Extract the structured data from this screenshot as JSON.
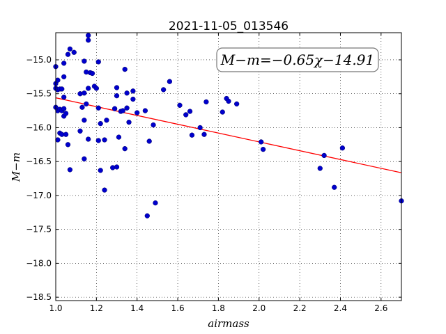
{
  "chart_data": {
    "type": "scatter",
    "title": "2021-11-05_013546",
    "xlabel": "airmass",
    "ylabel": "M−m",
    "xlim": [
      1.0,
      2.7
    ],
    "ylim": [
      -18.55,
      -14.6
    ],
    "y_inverted": true,
    "grid": true,
    "x_ticks": [
      1.0,
      1.2,
      1.4,
      1.6,
      1.8,
      2.0,
      2.2,
      2.4,
      2.6
    ],
    "x_tick_labels": [
      "1.0",
      "1.2",
      "1.4",
      "1.6",
      "1.8",
      "2.0",
      "2.2",
      "2.4",
      "2.6"
    ],
    "y_ticks": [
      -15.0,
      -15.5,
      -16.0,
      -16.5,
      -17.0,
      -17.5,
      -18.0,
      -18.5
    ],
    "y_tick_labels": [
      "−15.0",
      "−15.5",
      "−16.0",
      "−16.5",
      "−17.0",
      "−17.5",
      "−18.0",
      "−18.5"
    ],
    "annotation": "M−m=−0.65χ−14.91",
    "fit": {
      "slope": -0.65,
      "intercept": -14.91,
      "x_range": [
        1.0,
        2.7
      ],
      "color": "#ff0000"
    },
    "point_color": "#0000cc",
    "points": [
      [
        1.0,
        -15.1
      ],
      [
        1.0,
        -15.35
      ],
      [
        1.0,
        -15.42
      ],
      [
        1.0,
        -15.7
      ],
      [
        1.01,
        -15.3
      ],
      [
        1.01,
        -15.44
      ],
      [
        1.01,
        -15.75
      ],
      [
        1.01,
        -16.18
      ],
      [
        1.02,
        -15.43
      ],
      [
        1.02,
        -15.73
      ],
      [
        1.02,
        -16.08
      ],
      [
        1.03,
        -15.43
      ],
      [
        1.03,
        -15.75
      ],
      [
        1.03,
        -16.1
      ],
      [
        1.04,
        -15.05
      ],
      [
        1.04,
        -15.25
      ],
      [
        1.04,
        -15.83
      ],
      [
        1.04,
        -15.55
      ],
      [
        1.04,
        -15.72
      ],
      [
        1.05,
        -15.79
      ],
      [
        1.05,
        -16.1
      ],
      [
        1.06,
        -14.92
      ],
      [
        1.06,
        -16.25
      ],
      [
        1.07,
        -14.84
      ],
      [
        1.07,
        -16.62
      ],
      [
        1.09,
        -14.89
      ],
      [
        1.12,
        -15.5
      ],
      [
        1.12,
        -16.05
      ],
      [
        1.13,
        -15.7
      ],
      [
        1.14,
        -15.02
      ],
      [
        1.14,
        -15.49
      ],
      [
        1.14,
        -15.89
      ],
      [
        1.14,
        -16.46
      ],
      [
        1.15,
        -15.18
      ],
      [
        1.15,
        -15.65
      ],
      [
        1.16,
        -14.64
      ],
      [
        1.16,
        -14.71
      ],
      [
        1.16,
        -15.42
      ],
      [
        1.16,
        -16.17
      ],
      [
        1.17,
        -15.19
      ],
      [
        1.18,
        -15.2
      ],
      [
        1.19,
        -15.39
      ],
      [
        1.2,
        -15.42
      ],
      [
        1.21,
        -15.03
      ],
      [
        1.21,
        -15.71
      ],
      [
        1.21,
        -16.19
      ],
      [
        1.22,
        -15.94
      ],
      [
        1.22,
        -16.63
      ],
      [
        1.24,
        -16.18
      ],
      [
        1.24,
        -16.92
      ],
      [
        1.25,
        -15.89
      ],
      [
        1.28,
        -16.59
      ],
      [
        1.29,
        -15.72
      ],
      [
        1.3,
        -15.41
      ],
      [
        1.3,
        -15.53
      ],
      [
        1.3,
        -16.58
      ],
      [
        1.31,
        -16.14
      ],
      [
        1.32,
        -15.76
      ],
      [
        1.33,
        -15.75
      ],
      [
        1.34,
        -15.14
      ],
      [
        1.34,
        -16.31
      ],
      [
        1.35,
        -15.49
      ],
      [
        1.35,
        -15.71
      ],
      [
        1.36,
        -15.92
      ],
      [
        1.38,
        -15.58
      ],
      [
        1.38,
        -15.46
      ],
      [
        1.4,
        -15.78
      ],
      [
        1.44,
        -15.75
      ],
      [
        1.45,
        -17.3
      ],
      [
        1.46,
        -16.2
      ],
      [
        1.48,
        -15.96
      ],
      [
        1.49,
        -17.11
      ],
      [
        1.53,
        -15.44
      ],
      [
        1.56,
        -15.32
      ],
      [
        1.61,
        -15.67
      ],
      [
        1.64,
        -15.81
      ],
      [
        1.66,
        -15.76
      ],
      [
        1.67,
        -16.11
      ],
      [
        1.71,
        -16.0
      ],
      [
        1.73,
        -16.1
      ],
      [
        1.74,
        -15.62
      ],
      [
        1.82,
        -15.77
      ],
      [
        1.84,
        -15.57
      ],
      [
        1.85,
        -15.61
      ],
      [
        1.89,
        -15.65
      ],
      [
        2.01,
        -16.21
      ],
      [
        2.02,
        -16.32
      ],
      [
        2.3,
        -16.6
      ],
      [
        2.32,
        -16.41
      ],
      [
        2.37,
        -16.88
      ],
      [
        2.41,
        -16.3
      ],
      [
        2.7,
        -17.08
      ]
    ]
  }
}
